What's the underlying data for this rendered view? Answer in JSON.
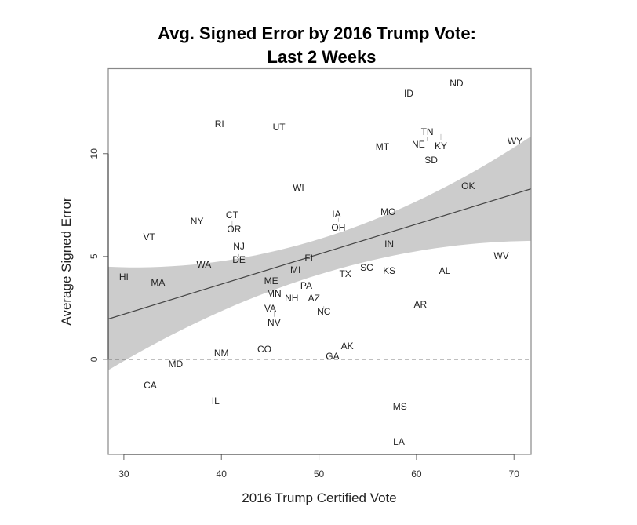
{
  "chart_data": {
    "type": "scatter",
    "title": "Avg. Signed Error by 2016 Trump Vote:",
    "subtitle": "Last 2 Weeks",
    "xlabel": "2016 Trump Certified Vote",
    "ylabel": "Average Signed Error",
    "xlim": [
      28.4,
      71.75
    ],
    "ylim": [
      -4.62,
      14.13
    ],
    "x_ticks": [
      30,
      40,
      50,
      60,
      70
    ],
    "y_ticks": [
      0,
      5,
      10
    ],
    "grid": false,
    "legend": "none",
    "marker": "text-label",
    "reference_line": {
      "y": 0,
      "style": "dashed"
    },
    "fit": {
      "method": "linear",
      "line": {
        "x": [
          28.4,
          71.75
        ],
        "y": [
          1.96,
          8.29
        ]
      },
      "confidence_band": {
        "x": [
          28.4,
          50,
          71.75
        ],
        "upper": [
          4.5,
          5.84,
          10.84
        ],
        "lower": [
          -0.53,
          4.12,
          5.76
        ]
      },
      "band_color": "#cccccc",
      "line_color": "#444444"
    },
    "points": [
      {
        "label": "HI",
        "x": 30.0,
        "y": 4.01
      },
      {
        "label": "MA",
        "x": 33.5,
        "y": 3.74
      },
      {
        "label": "VT",
        "x": 32.6,
        "y": 5.95
      },
      {
        "label": "WA",
        "x": 38.2,
        "y": 4.62
      },
      {
        "label": "NJ",
        "x": 41.8,
        "y": 5.5
      },
      {
        "label": "DE",
        "x": 41.8,
        "y": 4.96
      },
      {
        "label": "NY",
        "x": 37.5,
        "y": 6.72
      },
      {
        "label": "OR",
        "x": 41.3,
        "y": 6.34
      },
      {
        "label": "CT",
        "x": 41.1,
        "y": 6.22
      },
      {
        "label": "RI",
        "x": 39.8,
        "y": 11.45
      },
      {
        "label": "UT",
        "x": 45.9,
        "y": 11.3
      },
      {
        "label": "WI",
        "x": 47.9,
        "y": 8.36
      },
      {
        "label": "ID",
        "x": 59.2,
        "y": 12.94
      },
      {
        "label": "ND",
        "x": 64.1,
        "y": 13.44
      },
      {
        "label": "MT",
        "x": 56.5,
        "y": 10.34
      },
      {
        "label": "NE",
        "x": 60.2,
        "y": 10.46
      },
      {
        "label": "TN",
        "x": 61.1,
        "y": 10.61
      },
      {
        "label": "KY",
        "x": 62.5,
        "y": 10.95
      },
      {
        "label": "SD",
        "x": 61.5,
        "y": 9.69
      },
      {
        "label": "WY",
        "x": 70.1,
        "y": 10.61
      },
      {
        "label": "OK",
        "x": 65.3,
        "y": 8.44
      },
      {
        "label": "IA",
        "x": 51.8,
        "y": 7.06
      },
      {
        "label": "OH",
        "x": 52.0,
        "y": 6.87
      },
      {
        "label": "MO",
        "x": 57.1,
        "y": 7.18
      },
      {
        "label": "IN",
        "x": 57.2,
        "y": 5.61
      },
      {
        "label": "FL",
        "x": 49.1,
        "y": 4.92
      },
      {
        "label": "MI",
        "x": 47.6,
        "y": 4.35
      },
      {
        "label": "ME",
        "x": 45.1,
        "y": 3.82
      },
      {
        "label": "MN",
        "x": 45.4,
        "y": 3.21
      },
      {
        "label": "NH",
        "x": 47.2,
        "y": 2.98
      },
      {
        "label": "PA",
        "x": 48.7,
        "y": 3.59
      },
      {
        "label": "AZ",
        "x": 49.5,
        "y": 2.98
      },
      {
        "label": "VA",
        "x": 45.0,
        "y": 2.48
      },
      {
        "label": "NV",
        "x": 45.4,
        "y": 2.37
      },
      {
        "label": "NC",
        "x": 50.5,
        "y": 2.44
      },
      {
        "label": "TX",
        "x": 52.7,
        "y": 4.16
      },
      {
        "label": "SC",
        "x": 54.9,
        "y": 4.47
      },
      {
        "label": "KS",
        "x": 57.2,
        "y": 4.31
      },
      {
        "label": "AL",
        "x": 62.9,
        "y": 4.31
      },
      {
        "label": "WV",
        "x": 68.7,
        "y": 5.04
      },
      {
        "label": "AR",
        "x": 60.4,
        "y": 2.67
      },
      {
        "label": "AK",
        "x": 52.9,
        "y": 0.65
      },
      {
        "label": "GA",
        "x": 51.4,
        "y": 0.15
      },
      {
        "label": "CO",
        "x": 44.4,
        "y": 0.5
      },
      {
        "label": "NM",
        "x": 40.0,
        "y": 0.31
      },
      {
        "label": "MD",
        "x": 35.3,
        "y": -0.23
      },
      {
        "label": "CA",
        "x": 32.7,
        "y": -1.26
      },
      {
        "label": "IL",
        "x": 39.4,
        "y": -2.02
      },
      {
        "label": "MS",
        "x": 58.3,
        "y": -2.29
      },
      {
        "label": "LA",
        "x": 58.2,
        "y": -4.0
      }
    ]
  }
}
